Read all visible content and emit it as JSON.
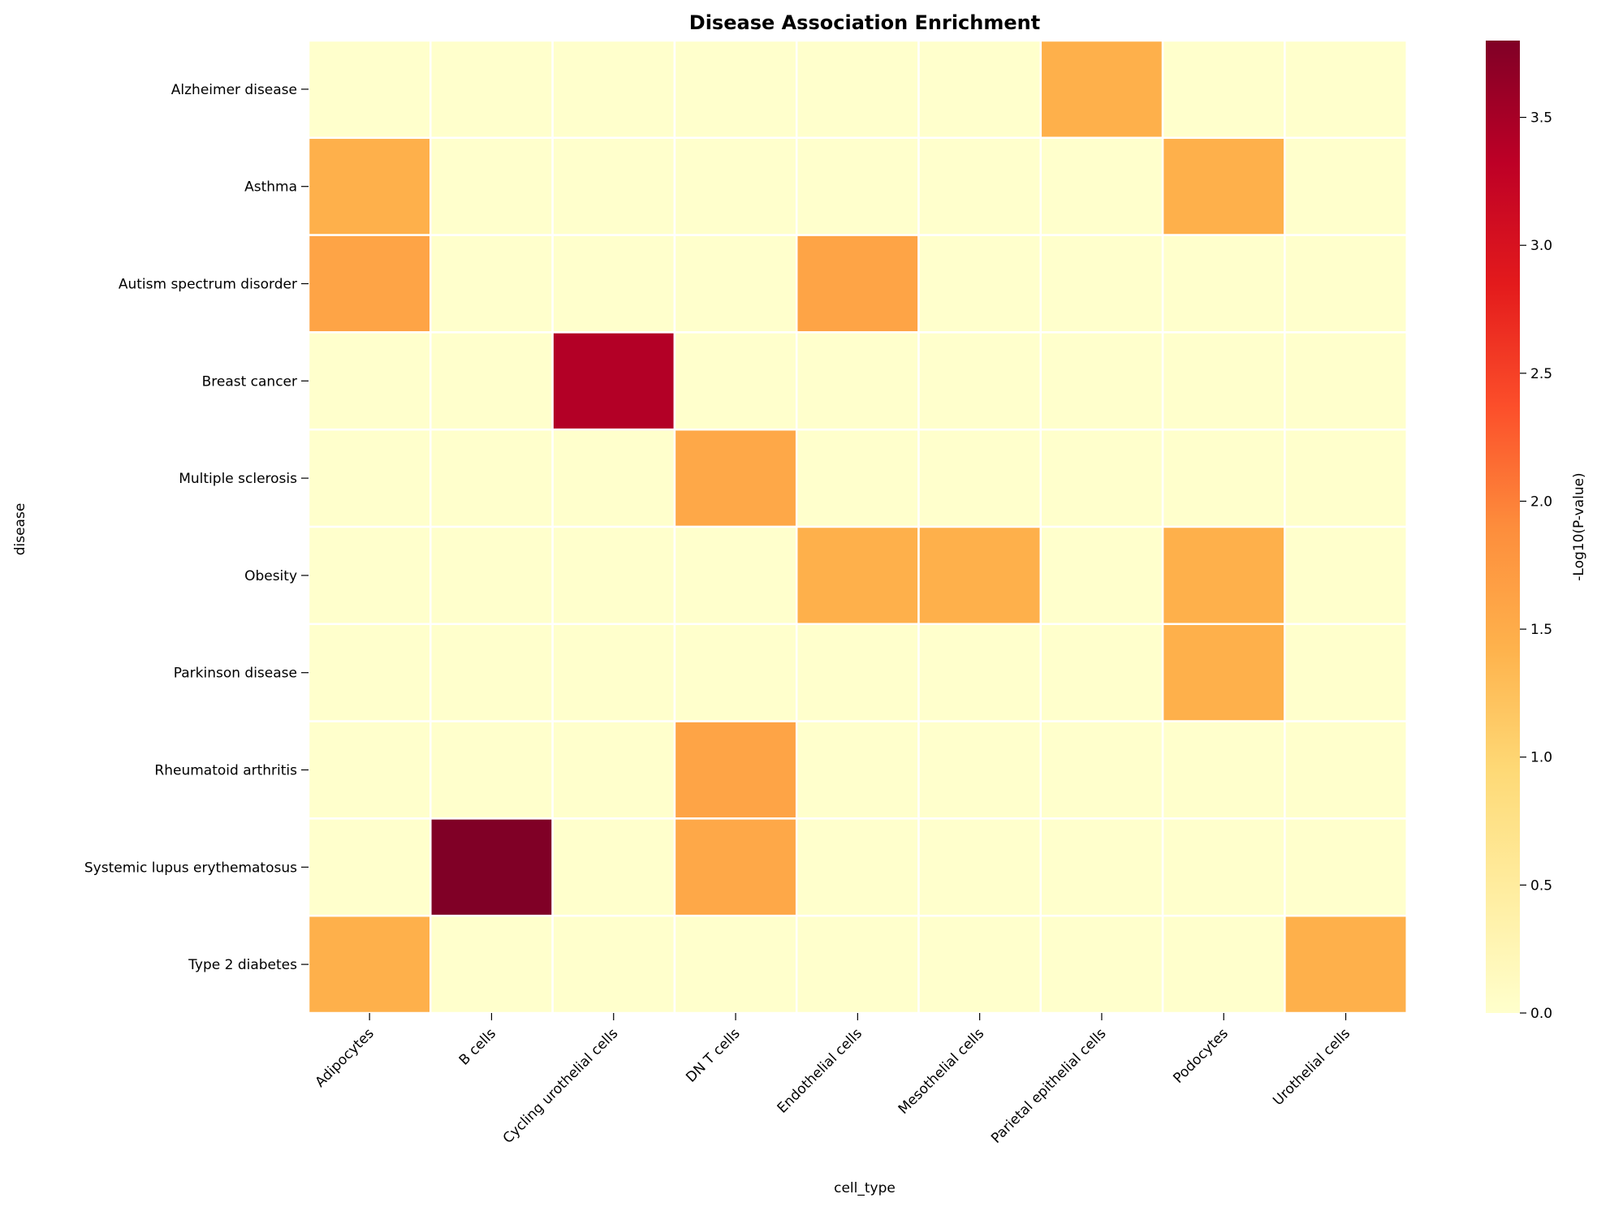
{
  "chart_data": {
    "type": "heatmap",
    "title": "Disease Association Enrichment",
    "xlabel": "cell_type",
    "ylabel": "disease",
    "colorbar_label": "-Log10(P-value)",
    "colormap": "YlOrRd",
    "colormap_stops": [
      "#ffffcc",
      "#ffeda0",
      "#fed976",
      "#feb24c",
      "#fd8d3c",
      "#fc4e2a",
      "#e31a1c",
      "#bd0026",
      "#800026"
    ],
    "vmin": 0.0,
    "vmax": 3.8,
    "colorbar_ticks": [
      "0.0",
      "0.5",
      "1.0",
      "1.5",
      "2.0",
      "2.5",
      "3.0",
      "3.5"
    ],
    "x_categories": [
      "Adipocytes",
      "B cells",
      "Cycling urothelial cells",
      "DN T cells",
      "Endothelial cells",
      "Mesothelial cells",
      "Parietal epithelial cells",
      "Podocytes",
      "Urothelial cells"
    ],
    "y_categories": [
      "Alzheimer disease",
      "Asthma",
      "Autism spectrum disorder",
      "Breast cancer",
      "Multiple sclerosis",
      "Obesity",
      "Parkinson disease",
      "Rheumatoid arthritis",
      "Systemic lupus erythematosus",
      "Type 2 diabetes"
    ],
    "values": [
      [
        0,
        0,
        0,
        0,
        0,
        0,
        1.45,
        0,
        0
      ],
      [
        1.45,
        0,
        0,
        0,
        0,
        0,
        0,
        1.45,
        0
      ],
      [
        1.6,
        0,
        0,
        0,
        1.6,
        0,
        0,
        0,
        0
      ],
      [
        0,
        0,
        3.4,
        0,
        0,
        0,
        0,
        0,
        0
      ],
      [
        0,
        0,
        0,
        1.55,
        0,
        0,
        0,
        0,
        0
      ],
      [
        0,
        0,
        0,
        0,
        1.45,
        1.45,
        0,
        1.45,
        0
      ],
      [
        0,
        0,
        0,
        0,
        0,
        0,
        0,
        1.45,
        0
      ],
      [
        0,
        0,
        0,
        1.6,
        0,
        0,
        0,
        0,
        0
      ],
      [
        0,
        3.8,
        0,
        1.55,
        0,
        0,
        0,
        0,
        0
      ],
      [
        1.45,
        0,
        0,
        0,
        0,
        0,
        0,
        0,
        1.45
      ]
    ]
  }
}
